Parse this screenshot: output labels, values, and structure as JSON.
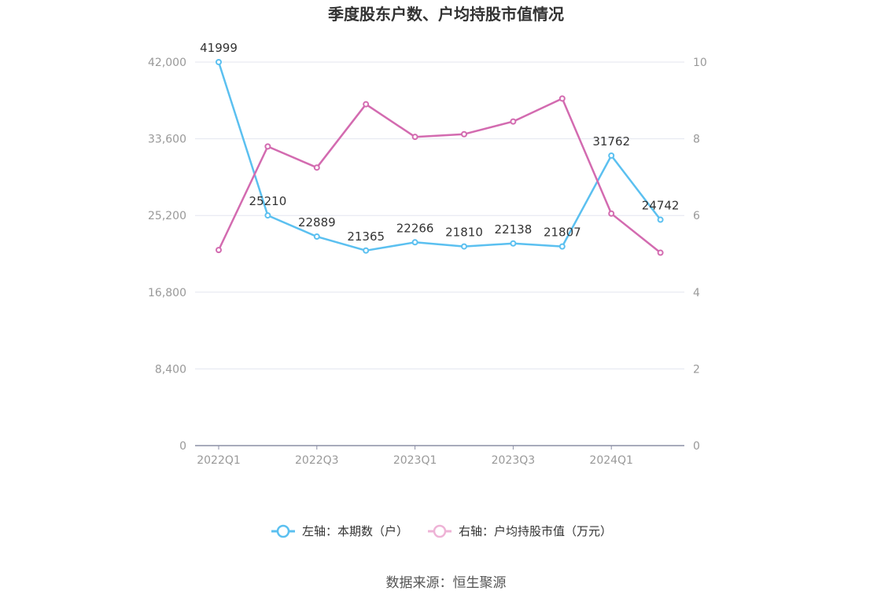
{
  "chart_data": {
    "type": "line",
    "title": "季度股东户数、户均持股市值情况",
    "categories": [
      "2022Q1",
      "2022Q2",
      "2022Q3",
      "2022Q4",
      "2023Q1",
      "2023Q2",
      "2023Q3",
      "2023Q4",
      "2024Q1",
      "2024Q2"
    ],
    "x_tick_labels": [
      "2022Q1",
      "",
      "2022Q3",
      "",
      "2023Q1",
      "",
      "2023Q3",
      "",
      "2024Q1",
      ""
    ],
    "y_left": {
      "range": [
        0,
        42000
      ],
      "ticks": [
        0,
        8400,
        16800,
        25200,
        33600,
        42000
      ],
      "tick_labels": [
        "0",
        "8,400",
        "16,800",
        "25,200",
        "33,600",
        "42,000"
      ]
    },
    "y_right": {
      "range": [
        0,
        10
      ],
      "ticks": [
        0,
        2,
        4,
        6,
        8,
        10
      ],
      "tick_labels": [
        "0",
        "2",
        "4",
        "6",
        "8",
        "10"
      ]
    },
    "grid": true,
    "legend_position": "bottom",
    "series": [
      {
        "name": "左轴：本期数（户）",
        "axis": "left",
        "color": "#5bc0f0",
        "values": [
          41999,
          25210,
          22889,
          21365,
          22266,
          21810,
          22138,
          21807,
          31762,
          24742
        ],
        "labels": [
          "41999",
          "25210",
          "22889",
          "21365",
          "22266",
          "21810",
          "22138",
          "21807",
          "31762",
          "24742"
        ]
      },
      {
        "name": "右轴：户均持股市值（万元）",
        "axis": "right",
        "color": "#d36bb0",
        "values": [
          5.1,
          7.8,
          7.25,
          8.9,
          8.05,
          8.12,
          8.45,
          9.05,
          6.05,
          5.03
        ]
      }
    ]
  },
  "source": "数据来源：恒生聚源"
}
